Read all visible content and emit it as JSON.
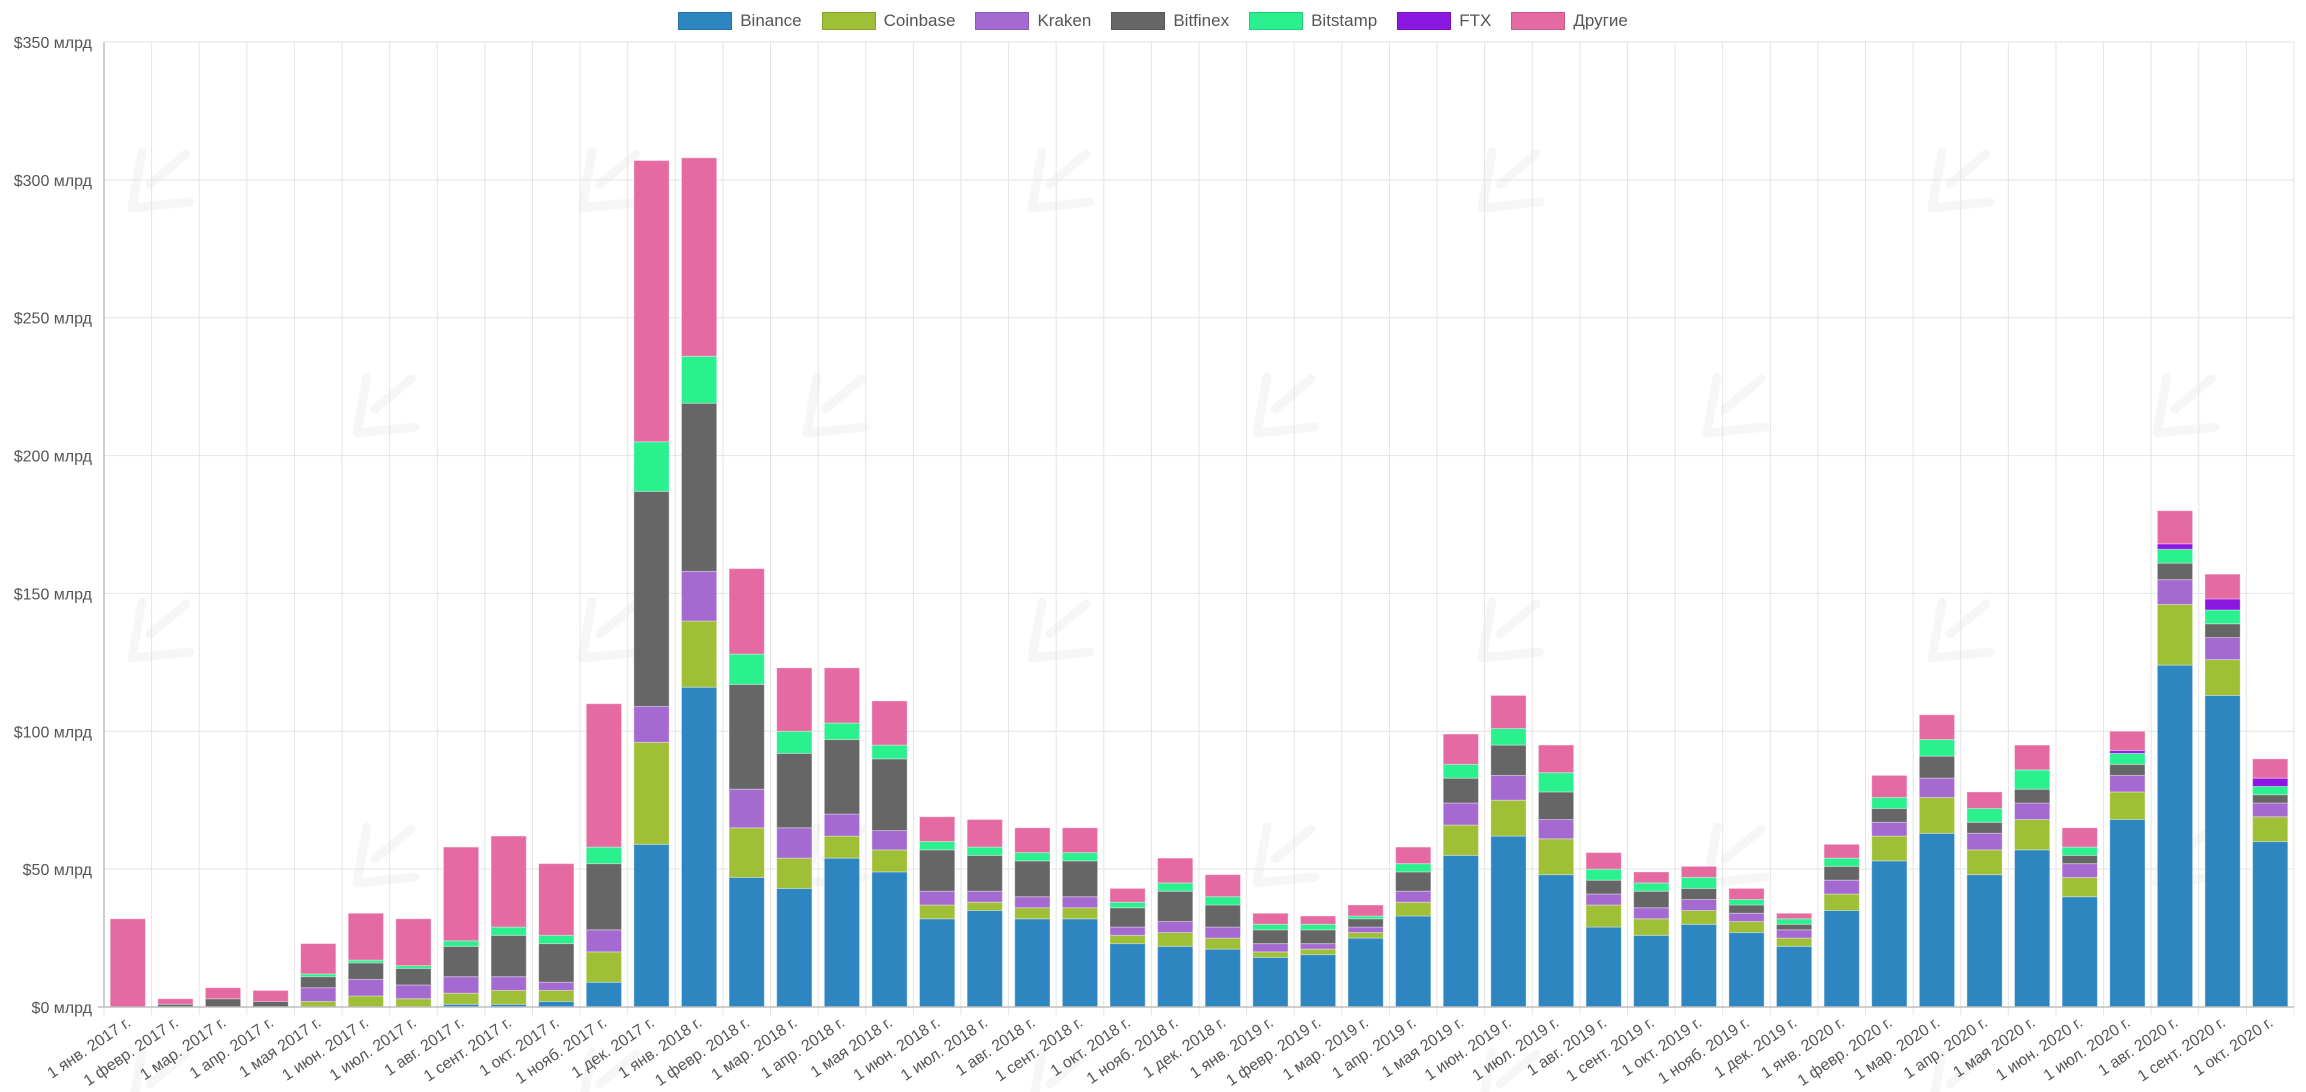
{
  "chart_data": {
    "type": "bar",
    "stacked": true,
    "title": "",
    "xlabel": "",
    "ylabel": "",
    "ylim": [
      0,
      350
    ],
    "y_ticks": [
      {
        "value": 0,
        "label": "$0 млрд"
      },
      {
        "value": 50,
        "label": "$50 млрд"
      },
      {
        "value": 100,
        "label": "$100 млрд"
      },
      {
        "value": 150,
        "label": "$150 млрд"
      },
      {
        "value": 200,
        "label": "$200 млрд"
      },
      {
        "value": 250,
        "label": "$250 млрд"
      },
      {
        "value": 300,
        "label": "$300 млрд"
      },
      {
        "value": 350,
        "label": "$350 млрд"
      }
    ],
    "legend_position": "top-center",
    "grid": true,
    "categories": [
      "1 янв. 2017 г.",
      "1 февр. 2017 г.",
      "1 мар. 2017 г.",
      "1 апр. 2017 г.",
      "1 мая 2017 г.",
      "1 июн. 2017 г.",
      "1 июл. 2017 г.",
      "1 авг. 2017 г.",
      "1 сент. 2017 г.",
      "1 окт. 2017 г.",
      "1 нояб. 2017 г.",
      "1 дек. 2017 г.",
      "1 янв. 2018 г.",
      "1 февр. 2018 г.",
      "1 мар. 2018 г.",
      "1 апр. 2018 г.",
      "1 мая 2018 г.",
      "1 июн. 2018 г.",
      "1 июл. 2018 г.",
      "1 авг. 2018 г.",
      "1 сент. 2018 г.",
      "1 окт. 2018 г.",
      "1 нояб. 2018 г.",
      "1 дек. 2018 г.",
      "1 янв. 2019 г.",
      "1 февр. 2019 г.",
      "1 мар. 2019 г.",
      "1 апр. 2019 г.",
      "1 мая 2019 г.",
      "1 июн. 2019 г.",
      "1 июл. 2019 г.",
      "1 авг. 2019 г.",
      "1 сент. 2019 г.",
      "1 окт. 2019 г.",
      "1 нояб. 2019 г.",
      "1 дек. 2019 г.",
      "1 янв. 2020 г.",
      "1 февр. 2020 г.",
      "1 мар. 2020 г.",
      "1 апр. 2020 г.",
      "1 мая 2020 г.",
      "1 июн. 2020 г.",
      "1 июл. 2020 г.",
      "1 авг. 2020 г.",
      "1 сент. 2020 г.",
      "1 окт. 2020 г."
    ],
    "series": [
      {
        "name": "Binance",
        "color": "#2e86c1",
        "values": [
          0,
          0,
          0,
          0,
          0,
          0,
          0,
          1,
          1,
          2,
          9,
          59,
          116,
          47,
          43,
          54,
          49,
          32,
          35,
          32,
          32,
          23,
          22,
          21,
          18,
          19,
          25,
          33,
          55,
          62,
          48,
          29,
          26,
          30,
          27,
          22,
          35,
          53,
          63,
          48,
          57,
          40,
          68,
          124,
          113,
          60
        ]
      },
      {
        "name": "Coinbase",
        "color": "#9fbf36",
        "values": [
          0,
          0,
          0,
          0,
          2,
          4,
          3,
          4,
          5,
          4,
          11,
          37,
          24,
          18,
          11,
          8,
          8,
          5,
          3,
          4,
          4,
          3,
          5,
          4,
          2,
          2,
          2,
          5,
          11,
          13,
          13,
          8,
          6,
          5,
          4,
          3,
          6,
          9,
          13,
          9,
          11,
          7,
          10,
          22,
          13,
          9
        ]
      },
      {
        "name": "Kraken",
        "color": "#a56ad1",
        "values": [
          0,
          0,
          0,
          0,
          5,
          6,
          5,
          6,
          5,
          3,
          8,
          13,
          18,
          14,
          11,
          8,
          7,
          5,
          4,
          4,
          4,
          3,
          4,
          4,
          3,
          2,
          2,
          4,
          8,
          9,
          7,
          4,
          4,
          4,
          3,
          3,
          5,
          5,
          7,
          6,
          6,
          5,
          6,
          9,
          8,
          5
        ]
      },
      {
        "name": "Bitfinex",
        "color": "#666666",
        "values": [
          0,
          1,
          3,
          2,
          4,
          6,
          6,
          11,
          15,
          14,
          24,
          78,
          61,
          38,
          27,
          27,
          26,
          15,
          13,
          13,
          13,
          7,
          11,
          8,
          5,
          5,
          3,
          7,
          9,
          11,
          10,
          5,
          6,
          4,
          3,
          2,
          5,
          5,
          8,
          4,
          5,
          3,
          4,
          6,
          5,
          3
        ]
      },
      {
        "name": "Bitstamp",
        "color": "#2af08e",
        "values": [
          0,
          0,
          0,
          0,
          1,
          1,
          1,
          2,
          3,
          3,
          6,
          18,
          17,
          11,
          8,
          6,
          5,
          3,
          3,
          3,
          3,
          2,
          3,
          3,
          2,
          2,
          1,
          3,
          5,
          6,
          7,
          4,
          3,
          4,
          2,
          2,
          3,
          4,
          6,
          5,
          7,
          3,
          4,
          5,
          5,
          3
        ]
      },
      {
        "name": "FTX",
        "color": "#8b17e0",
        "values": [
          0,
          0,
          0,
          0,
          0,
          0,
          0,
          0,
          0,
          0,
          0,
          0,
          0,
          0,
          0,
          0,
          0,
          0,
          0,
          0,
          0,
          0,
          0,
          0,
          0,
          0,
          0,
          0,
          0,
          0,
          0,
          0,
          0,
          0,
          0,
          0,
          0,
          0,
          0,
          0,
          0,
          0,
          1,
          2,
          4,
          3
        ]
      },
      {
        "name": "Другие",
        "color": "#e66aa2",
        "values": [
          32,
          2,
          4,
          4,
          11,
          17,
          17,
          34,
          33,
          26,
          52,
          102,
          72,
          31,
          23,
          20,
          16,
          9,
          10,
          9,
          9,
          5,
          9,
          8,
          4,
          3,
          4,
          6,
          11,
          12,
          10,
          6,
          4,
          4,
          4,
          2,
          5,
          8,
          9,
          6,
          9,
          7,
          7,
          12,
          9,
          7
        ]
      }
    ]
  }
}
